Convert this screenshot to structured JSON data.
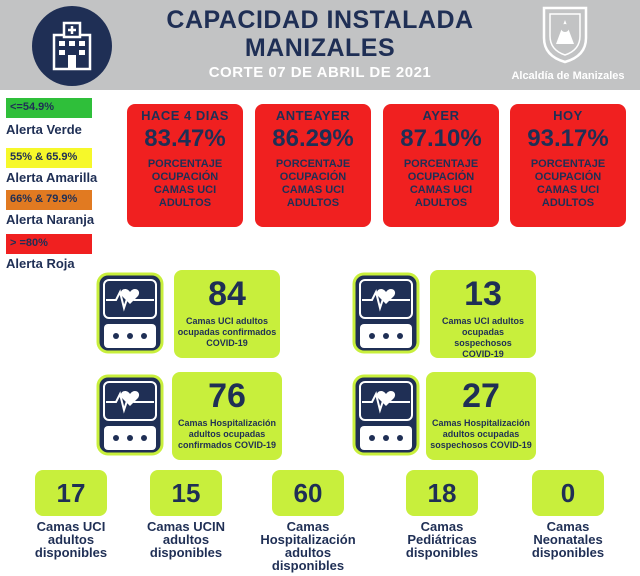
{
  "header": {
    "title_line1": "CAPACIDAD INSTALADA",
    "title_line2": "MANIZALES",
    "subtitle": "CORTE 07 DE ABRIL DE 2021",
    "logo_text": "Alcaldía de Manizales",
    "bg_color": "#c2c3c4",
    "title_color": "#1f2f55"
  },
  "legend": [
    {
      "range": "<=54.9%",
      "label": "Alerta Verde",
      "color": "#2fbf3a"
    },
    {
      "range": "55% & 65.9%",
      "label": "Alerta Amarilla",
      "color": "#f6f82a"
    },
    {
      "range": "66% & 79.9%",
      "label": "Alerta Naranja",
      "color": "#e17a21"
    },
    {
      "range": "> =80%",
      "label": "Alerta Roja",
      "color": "#f02020"
    }
  ],
  "occupancy": [
    {
      "period": "HACE 4 DIAS",
      "value": "83.47%",
      "desc_l1": "PORCENTAJE",
      "desc_l2": "OCUPACIÓN",
      "desc_l3": "CAMAS UCI",
      "desc_l4": "ADULTOS"
    },
    {
      "period": "ANTEAYER",
      "value": "86.29%",
      "desc_l1": "PORCENTAJE",
      "desc_l2": "OCUPACIÓN",
      "desc_l3": "CAMAS UCI",
      "desc_l4": "ADULTOS"
    },
    {
      "period": "AYER",
      "value": "87.10%",
      "desc_l1": "PORCENTAJE",
      "desc_l2": "OCUPACIÓN",
      "desc_l3": "CAMAS UCI",
      "desc_l4": "ADULTOS"
    },
    {
      "period": "HOY",
      "value": "93.17%",
      "desc_l1": "PORCENTAJE",
      "desc_l2": "OCUPACIÓN",
      "desc_l3": "CAMAS UCI",
      "desc_l4": "ADULTOS"
    }
  ],
  "stats": [
    {
      "value": "84",
      "desc_l1": "Camas UCI adultos",
      "desc_l2": "ocupadas confirmados",
      "desc_l3": "COVID-19"
    },
    {
      "value": "13",
      "desc_l1": "Camas UCI adultos",
      "desc_l2": "ocupadas sospechosos",
      "desc_l3": "COVID-19"
    },
    {
      "value": "76",
      "desc_l1": "Camas  Hospitalización",
      "desc_l2": "adultos ocupadas",
      "desc_l3": "confirmados COVID-19"
    },
    {
      "value": "27",
      "desc_l1": "Camas  Hospitalización",
      "desc_l2": "adultos ocupadas",
      "desc_l3": "sospechosos COVID-19"
    }
  ],
  "available": [
    {
      "value": "17",
      "label_l1": "Camas UCI",
      "label_l2": "adultos",
      "label_l3": "disponibles"
    },
    {
      "value": "15",
      "label_l1": "Camas UCIN",
      "label_l2": "adultos",
      "label_l3": "disponibles"
    },
    {
      "value": "60",
      "label_l1": "Camas",
      "label_l2": "Hospitalización",
      "label_l3": "adultos",
      "label_l4": "disponibles"
    },
    {
      "value": "18",
      "label_l1": "Camas",
      "label_l2": "Pediátricas",
      "label_l3": "disponibles"
    },
    {
      "value": "0",
      "label_l1": "Camas",
      "label_l2": "Neonatales",
      "label_l3": "disponibles"
    }
  ],
  "colors": {
    "card_red": "#f02020",
    "stat_green": "#c8ef3c",
    "navy": "#1f2f55"
  }
}
